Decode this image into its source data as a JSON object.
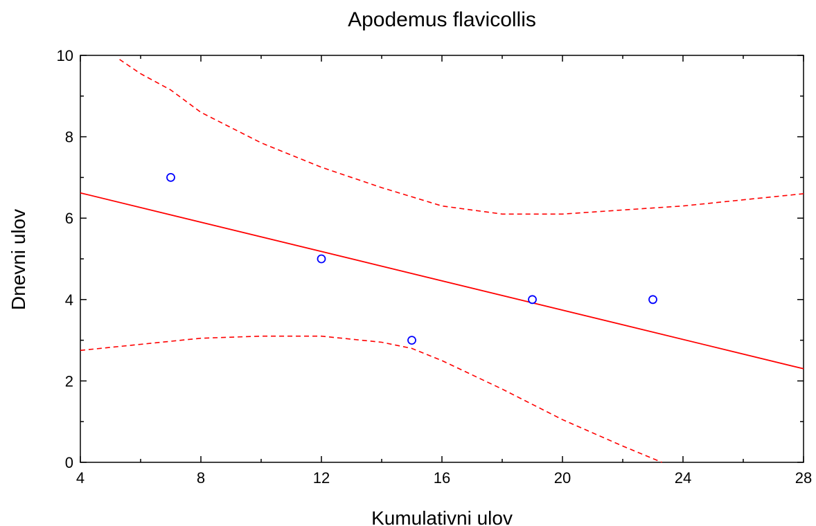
{
  "chart_data": {
    "type": "scatter",
    "title": "Apodemus flavicollis",
    "xlabel": "Kumulativni ulov",
    "ylabel": "Dnevni ulov",
    "xlim": [
      4,
      28
    ],
    "ylim": [
      0,
      10
    ],
    "xticks": [
      4,
      8,
      12,
      16,
      20,
      24,
      28
    ],
    "yticks": [
      0,
      2,
      4,
      6,
      8,
      10
    ],
    "xtick_labels": [
      "4",
      "8",
      "12",
      "16",
      "20",
      "24",
      "28"
    ],
    "ytick_labels": [
      "0",
      "2",
      "4",
      "6",
      "8",
      "10"
    ],
    "grid": false,
    "points": [
      {
        "x": 7,
        "y": 7
      },
      {
        "x": 12,
        "y": 5
      },
      {
        "x": 15,
        "y": 3
      },
      {
        "x": 19,
        "y": 4
      },
      {
        "x": 23,
        "y": 4
      }
    ],
    "regression_line": {
      "x": [
        4,
        28
      ],
      "y": [
        6.62,
        2.3
      ]
    },
    "upper_confidence_band": {
      "x": [
        5.3,
        6,
        7,
        8,
        10,
        12,
        14,
        16,
        18,
        20,
        22,
        24,
        26,
        28
      ],
      "y": [
        9.9,
        9.55,
        9.15,
        8.6,
        7.85,
        7.25,
        6.75,
        6.3,
        6.1,
        6.1,
        6.2,
        6.3,
        6.45,
        6.6
      ]
    },
    "lower_confidence_band": {
      "x": [
        4,
        6,
        8,
        10,
        12,
        14,
        15,
        16,
        18,
        20,
        22,
        23.3
      ],
      "y": [
        2.75,
        2.9,
        3.05,
        3.1,
        3.1,
        2.95,
        2.8,
        2.5,
        1.8,
        1.05,
        0.4,
        0.0
      ]
    },
    "colors": {
      "points": "#0000ff",
      "regression": "#ff0000",
      "confidence": "#ff0000",
      "axes": "#000000"
    }
  }
}
